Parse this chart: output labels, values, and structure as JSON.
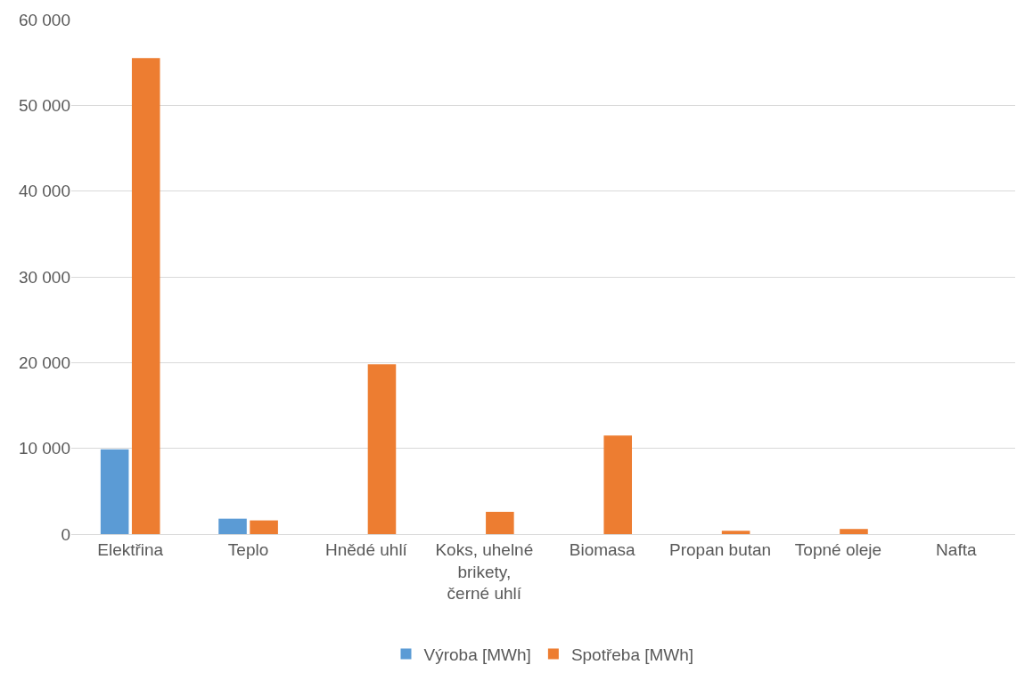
{
  "chart_data": {
    "type": "bar",
    "categories": [
      "Elektřina",
      "Teplo",
      "Hnědé uhlí",
      "Koks, uhelné brikety, černé uhlí",
      "Biomasa",
      "Propan butan",
      "Topné oleje",
      "Nafta"
    ],
    "series": [
      {
        "name": "Výroba [MWh]",
        "color": "#5b9bd5",
        "values": [
          9900,
          1800,
          null,
          null,
          null,
          null,
          null,
          null
        ]
      },
      {
        "name": "Spotřeba [MWh]",
        "color": "#ed7d31",
        "values": [
          55500,
          1600,
          19800,
          2600,
          11500,
          400,
          600,
          null
        ]
      }
    ],
    "ylim": [
      0,
      60000
    ],
    "yticks": [
      {
        "value": 0,
        "label": "0"
      },
      {
        "value": 10000,
        "label": "10 000"
      },
      {
        "value": 20000,
        "label": "20 000"
      },
      {
        "value": 30000,
        "label": "30 000"
      },
      {
        "value": 40000,
        "label": "40 000"
      },
      {
        "value": 50000,
        "label": "50 000"
      },
      {
        "value": 60000,
        "label": "60 000"
      }
    ],
    "grid": "y",
    "legend": "bottom"
  }
}
